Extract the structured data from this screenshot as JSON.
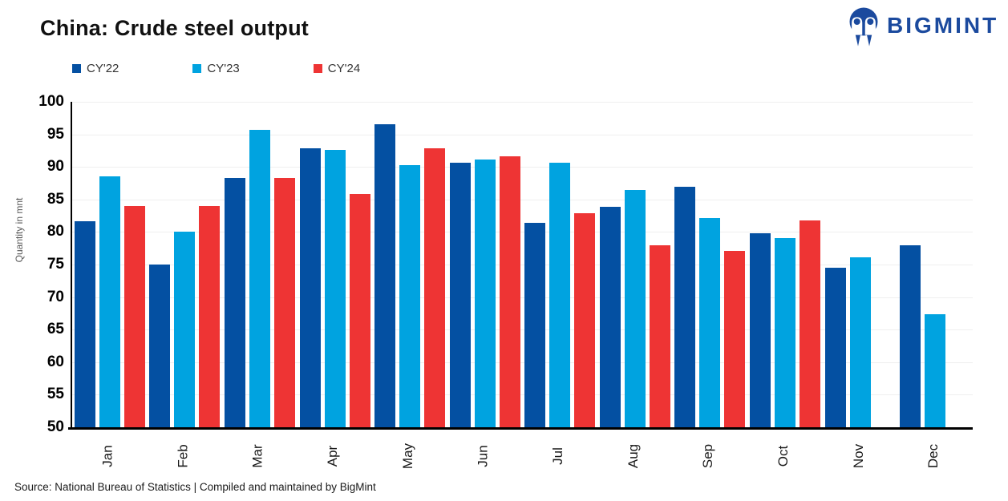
{
  "header": {
    "title": "China: Crude steel output",
    "logo_text": "BIGMINT",
    "logo_color": "#1B4A9E"
  },
  "chart_data": {
    "type": "bar",
    "title": "China: Crude steel output",
    "xlabel": "",
    "ylabel": "Quantity in mnt",
    "ylim": [
      50,
      100
    ],
    "ytick_step": 5,
    "yticks": [
      100,
      95,
      90,
      85,
      80,
      75,
      70,
      65,
      60,
      55,
      50
    ],
    "grid": "horizontal",
    "legend_position": "top-left",
    "gridline_color": "#EFEFEF",
    "categories": [
      "Jan",
      "Feb",
      "Mar",
      "Apr",
      "May",
      "Jun",
      "Jul",
      "Aug",
      "Sep",
      "Oct",
      "Nov",
      "Dec"
    ],
    "series": [
      {
        "name": "CY'22",
        "color": "#0450A2",
        "values": [
          81.7,
          75.0,
          88.3,
          92.8,
          96.6,
          90.7,
          81.4,
          83.9,
          87.0,
          79.8,
          74.5,
          77.9
        ]
      },
      {
        "name": "CY'23",
        "color": "#00A3E0",
        "values": [
          88.6,
          80.1,
          95.7,
          92.6,
          90.3,
          91.1,
          90.6,
          86.4,
          82.1,
          79.1,
          76.1,
          67.4
        ]
      },
      {
        "name": "CY'24",
        "color": "#EE3434",
        "values": [
          84.0,
          84.0,
          88.3,
          85.9,
          92.8,
          91.6,
          82.9,
          77.9,
          77.1,
          81.8,
          null,
          null
        ]
      }
    ]
  },
  "footer": {
    "source": "Source: National Bureau of Statistics | Compiled and maintained by BigMint"
  }
}
